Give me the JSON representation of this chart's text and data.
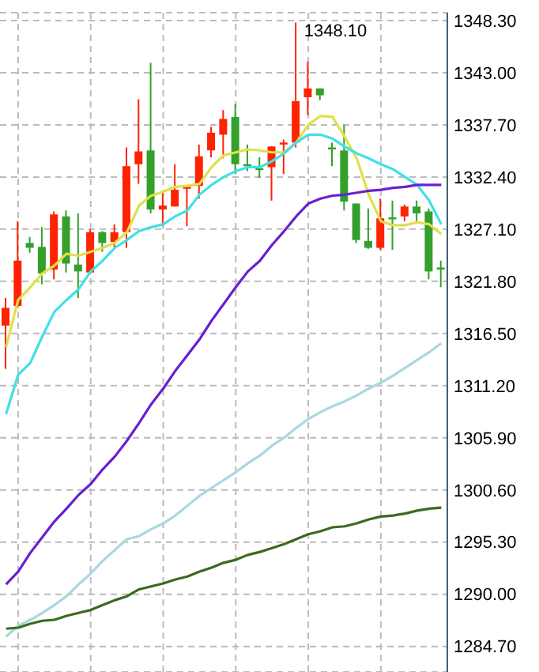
{
  "chart_data": {
    "type": "candlestick",
    "categories": [
      null,
      null,
      null,
      null,
      null,
      null,
      null,
      null,
      null,
      null,
      null,
      null,
      null,
      null,
      null,
      null,
      null,
      null,
      null,
      null,
      null,
      null,
      null,
      null,
      null,
      null,
      null,
      null,
      null,
      null,
      null,
      null,
      null,
      null,
      null,
      null,
      null
    ],
    "ohlc": [
      [
        1317.3,
        1320.1,
        1312.9,
        1319.1
      ],
      [
        1319.3,
        1327.9,
        1319.1,
        1323.9
      ],
      [
        1325.7,
        1326.3,
        1324.7,
        1325.2
      ],
      [
        1325.3,
        1327.3,
        1321.5,
        1322.6
      ],
      [
        1323.0,
        1328.9,
        1322.0,
        1328.6
      ],
      [
        1328.4,
        1329.0,
        1322.7,
        1323.6
      ],
      [
        1323.5,
        1328.7,
        1320.1,
        1322.8
      ],
      [
        1322.7,
        1327.1,
        1322.5,
        1326.8
      ],
      [
        1326.8,
        1326.9,
        1324.8,
        1325.7
      ],
      [
        1325.8,
        1327.6,
        1325.2,
        1326.8
      ],
      [
        1326.8,
        1335.4,
        1325.2,
        1333.5
      ],
      [
        1333.7,
        1340.3,
        1331.7,
        1335.0
      ],
      [
        1335.1,
        1344.0,
        1328.7,
        1329.1
      ],
      [
        1329.1,
        1330.9,
        1327.4,
        1329.5
      ],
      [
        1329.4,
        1333.7,
        1329.4,
        1331.1
      ],
      [
        1331.2,
        1331.4,
        1327.4,
        1331.4
      ],
      [
        1331.5,
        1335.7,
        1330.2,
        1334.5
      ],
      [
        1335.1,
        1337.5,
        1334.4,
        1336.9
      ],
      [
        1336.7,
        1339.2,
        1334.3,
        1338.3
      ],
      [
        1338.5,
        1339.8,
        1332.7,
        1333.7
      ],
      [
        1333.7,
        1335.7,
        1333.0,
        1333.5
      ],
      [
        1333.3,
        1334.4,
        1332.3,
        1333.1
      ],
      [
        1333.4,
        1335.5,
        1330.0,
        1335.5
      ],
      [
        1335.7,
        1336.2,
        1332.7,
        1335.9
      ],
      [
        1335.9,
        1348.1,
        1335.4,
        1340.1
      ],
      [
        1340.5,
        1344.1,
        1338.7,
        1341.4
      ],
      [
        1341.4,
        1341.4,
        1340.2,
        1340.7
      ],
      [
        1335.4,
        1335.9,
        1333.5,
        1335.2
      ],
      [
        1335.1,
        1337.7,
        1329.0,
        1329.9
      ],
      [
        1329.7,
        1329.7,
        1325.7,
        1326.0
      ],
      [
        1325.9,
        1329.2,
        1325.1,
        1325.2
      ],
      [
        1325.2,
        1330.2,
        1325.0,
        1328.2
      ],
      [
        1328.3,
        1330.0,
        1325.0,
        1328.1
      ],
      [
        1328.4,
        1329.6,
        1327.9,
        1329.4
      ],
      [
        1329.4,
        1330.0,
        1327.9,
        1328.7
      ],
      [
        1328.9,
        1329.2,
        1322.0,
        1322.8
      ],
      [
        1323.2,
        1323.9,
        1321.2,
        1323.0
      ]
    ],
    "colors": [
      "#ff2200",
      "#ff2200",
      "#33a02c",
      "#33a02c",
      "#ff2200",
      "#33a02c",
      "#33a02c",
      "#ff2200",
      "#33a02c",
      "#ff2200",
      "#ff2200",
      "#ff2200",
      "#33a02c",
      "#ff2200",
      "#ff2200",
      "#ff2200",
      "#ff2200",
      "#ff2200",
      "#ff2200",
      "#33a02c",
      "#33a02c",
      "#33a02c",
      "#ff2200",
      "#ff2200",
      "#ff2200",
      "#ff2200",
      "#33a02c",
      "#33a02c",
      "#33a02c",
      "#33a02c",
      "#33a02c",
      "#ff2200",
      "#33a02c",
      "#ff2200",
      "#33a02c",
      "#33a02c",
      "#33a02c"
    ],
    "series": [
      {
        "type": "line",
        "color": "#e0e048",
        "values": [
          1315.1,
          1319.9,
          1321.2,
          1322.6,
          1323.4,
          1324.6,
          1324.4,
          1324.8,
          1325.2,
          1325.7,
          1326.8,
          1329.5,
          1330.5,
          1330.9,
          1331.4,
          1331.5,
          1331.7,
          1333.4,
          1334.6,
          1334.9,
          1335.2,
          1335.1,
          1334.9,
          1334.9,
          1335.9,
          1337.7,
          1338.6,
          1338.5,
          1336.5,
          1334.3,
          1330.6,
          1327.9,
          1327.5,
          1327.5,
          1327.8,
          1327.6,
          1326.6
        ]
      },
      {
        "type": "line",
        "color": "#40e0e8",
        "values": [
          1308.3,
          1312.3,
          1313.5,
          1316.2,
          1318.7,
          1319.9,
          1321.0,
          1322.8,
          1323.9,
          1325.2,
          1326.0,
          1326.9,
          1327.3,
          1327.6,
          1328.4,
          1329.0,
          1330.6,
          1331.6,
          1332.4,
          1333.0,
          1333.4,
          1333.4,
          1334.0,
          1334.8,
          1335.9,
          1336.7,
          1336.7,
          1336.3,
          1335.5,
          1334.8,
          1334.3,
          1333.7,
          1333.2,
          1332.4,
          1331.6,
          1330.0,
          1327.6
        ]
      },
      {
        "type": "line",
        "color": "#6a1fd0",
        "values": [
          1291.0,
          1292.3,
          1294.2,
          1295.8,
          1297.4,
          1298.7,
          1300.1,
          1301.2,
          1302.7,
          1304.0,
          1305.6,
          1307.4,
          1309.3,
          1310.9,
          1312.7,
          1314.3,
          1315.9,
          1317.8,
          1319.5,
          1321.2,
          1322.8,
          1323.9,
          1325.5,
          1326.9,
          1328.4,
          1329.7,
          1330.2,
          1330.5,
          1330.6,
          1330.8,
          1331.0,
          1331.1,
          1331.3,
          1331.4,
          1331.6,
          1331.6,
          1331.6
        ]
      },
      {
        "type": "line",
        "color": "#a8d8e0",
        "values": [
          1285.7,
          1286.8,
          1287.4,
          1288.1,
          1288.9,
          1289.8,
          1291.0,
          1292.1,
          1293.4,
          1294.5,
          1295.6,
          1295.9,
          1296.6,
          1297.2,
          1298.0,
          1299.0,
          1300.0,
          1300.8,
          1301.6,
          1302.4,
          1303.3,
          1304.1,
          1305.1,
          1305.9,
          1306.9,
          1307.8,
          1308.5,
          1309.1,
          1309.6,
          1310.2,
          1310.9,
          1311.5,
          1312.2,
          1313.0,
          1313.8,
          1314.6,
          1315.5
        ]
      },
      {
        "type": "line",
        "color": "#3a6a20",
        "values": [
          1286.5,
          1286.6,
          1287.0,
          1287.3,
          1287.4,
          1287.8,
          1288.1,
          1288.4,
          1288.9,
          1289.4,
          1289.8,
          1290.5,
          1290.8,
          1291.1,
          1291.5,
          1291.8,
          1292.3,
          1292.7,
          1293.2,
          1293.5,
          1294.0,
          1294.3,
          1294.7,
          1295.1,
          1295.6,
          1296.1,
          1296.4,
          1296.8,
          1296.9,
          1297.2,
          1297.6,
          1297.9,
          1298.0,
          1298.2,
          1298.5,
          1298.7,
          1298.8
        ]
      }
    ],
    "ylim": [
      1282.1,
      1349.1
    ],
    "yticks": [
      {
        "value": 1348.3,
        "label": "1348.30"
      },
      {
        "value": 1343.0,
        "label": "1343.00"
      },
      {
        "value": 1337.7,
        "label": "1337.70"
      },
      {
        "value": 1332.4,
        "label": "1332.40"
      },
      {
        "value": 1327.1,
        "label": "1327.10"
      },
      {
        "value": 1321.8,
        "label": "1321.80"
      },
      {
        "value": 1316.5,
        "label": "1316.50"
      },
      {
        "value": 1311.2,
        "label": "1311.20"
      },
      {
        "value": 1305.9,
        "label": "1305.90"
      },
      {
        "value": 1300.6,
        "label": "1300.60"
      },
      {
        "value": 1295.3,
        "label": "1295.30"
      },
      {
        "value": 1290.0,
        "label": "1290.00"
      },
      {
        "value": 1284.7,
        "label": "1284.70"
      }
    ],
    "annotations": [
      "1348.10"
    ],
    "grid": true,
    "legend": false,
    "tick_labels": "y",
    "marker": "none",
    "line_style": "solid"
  }
}
